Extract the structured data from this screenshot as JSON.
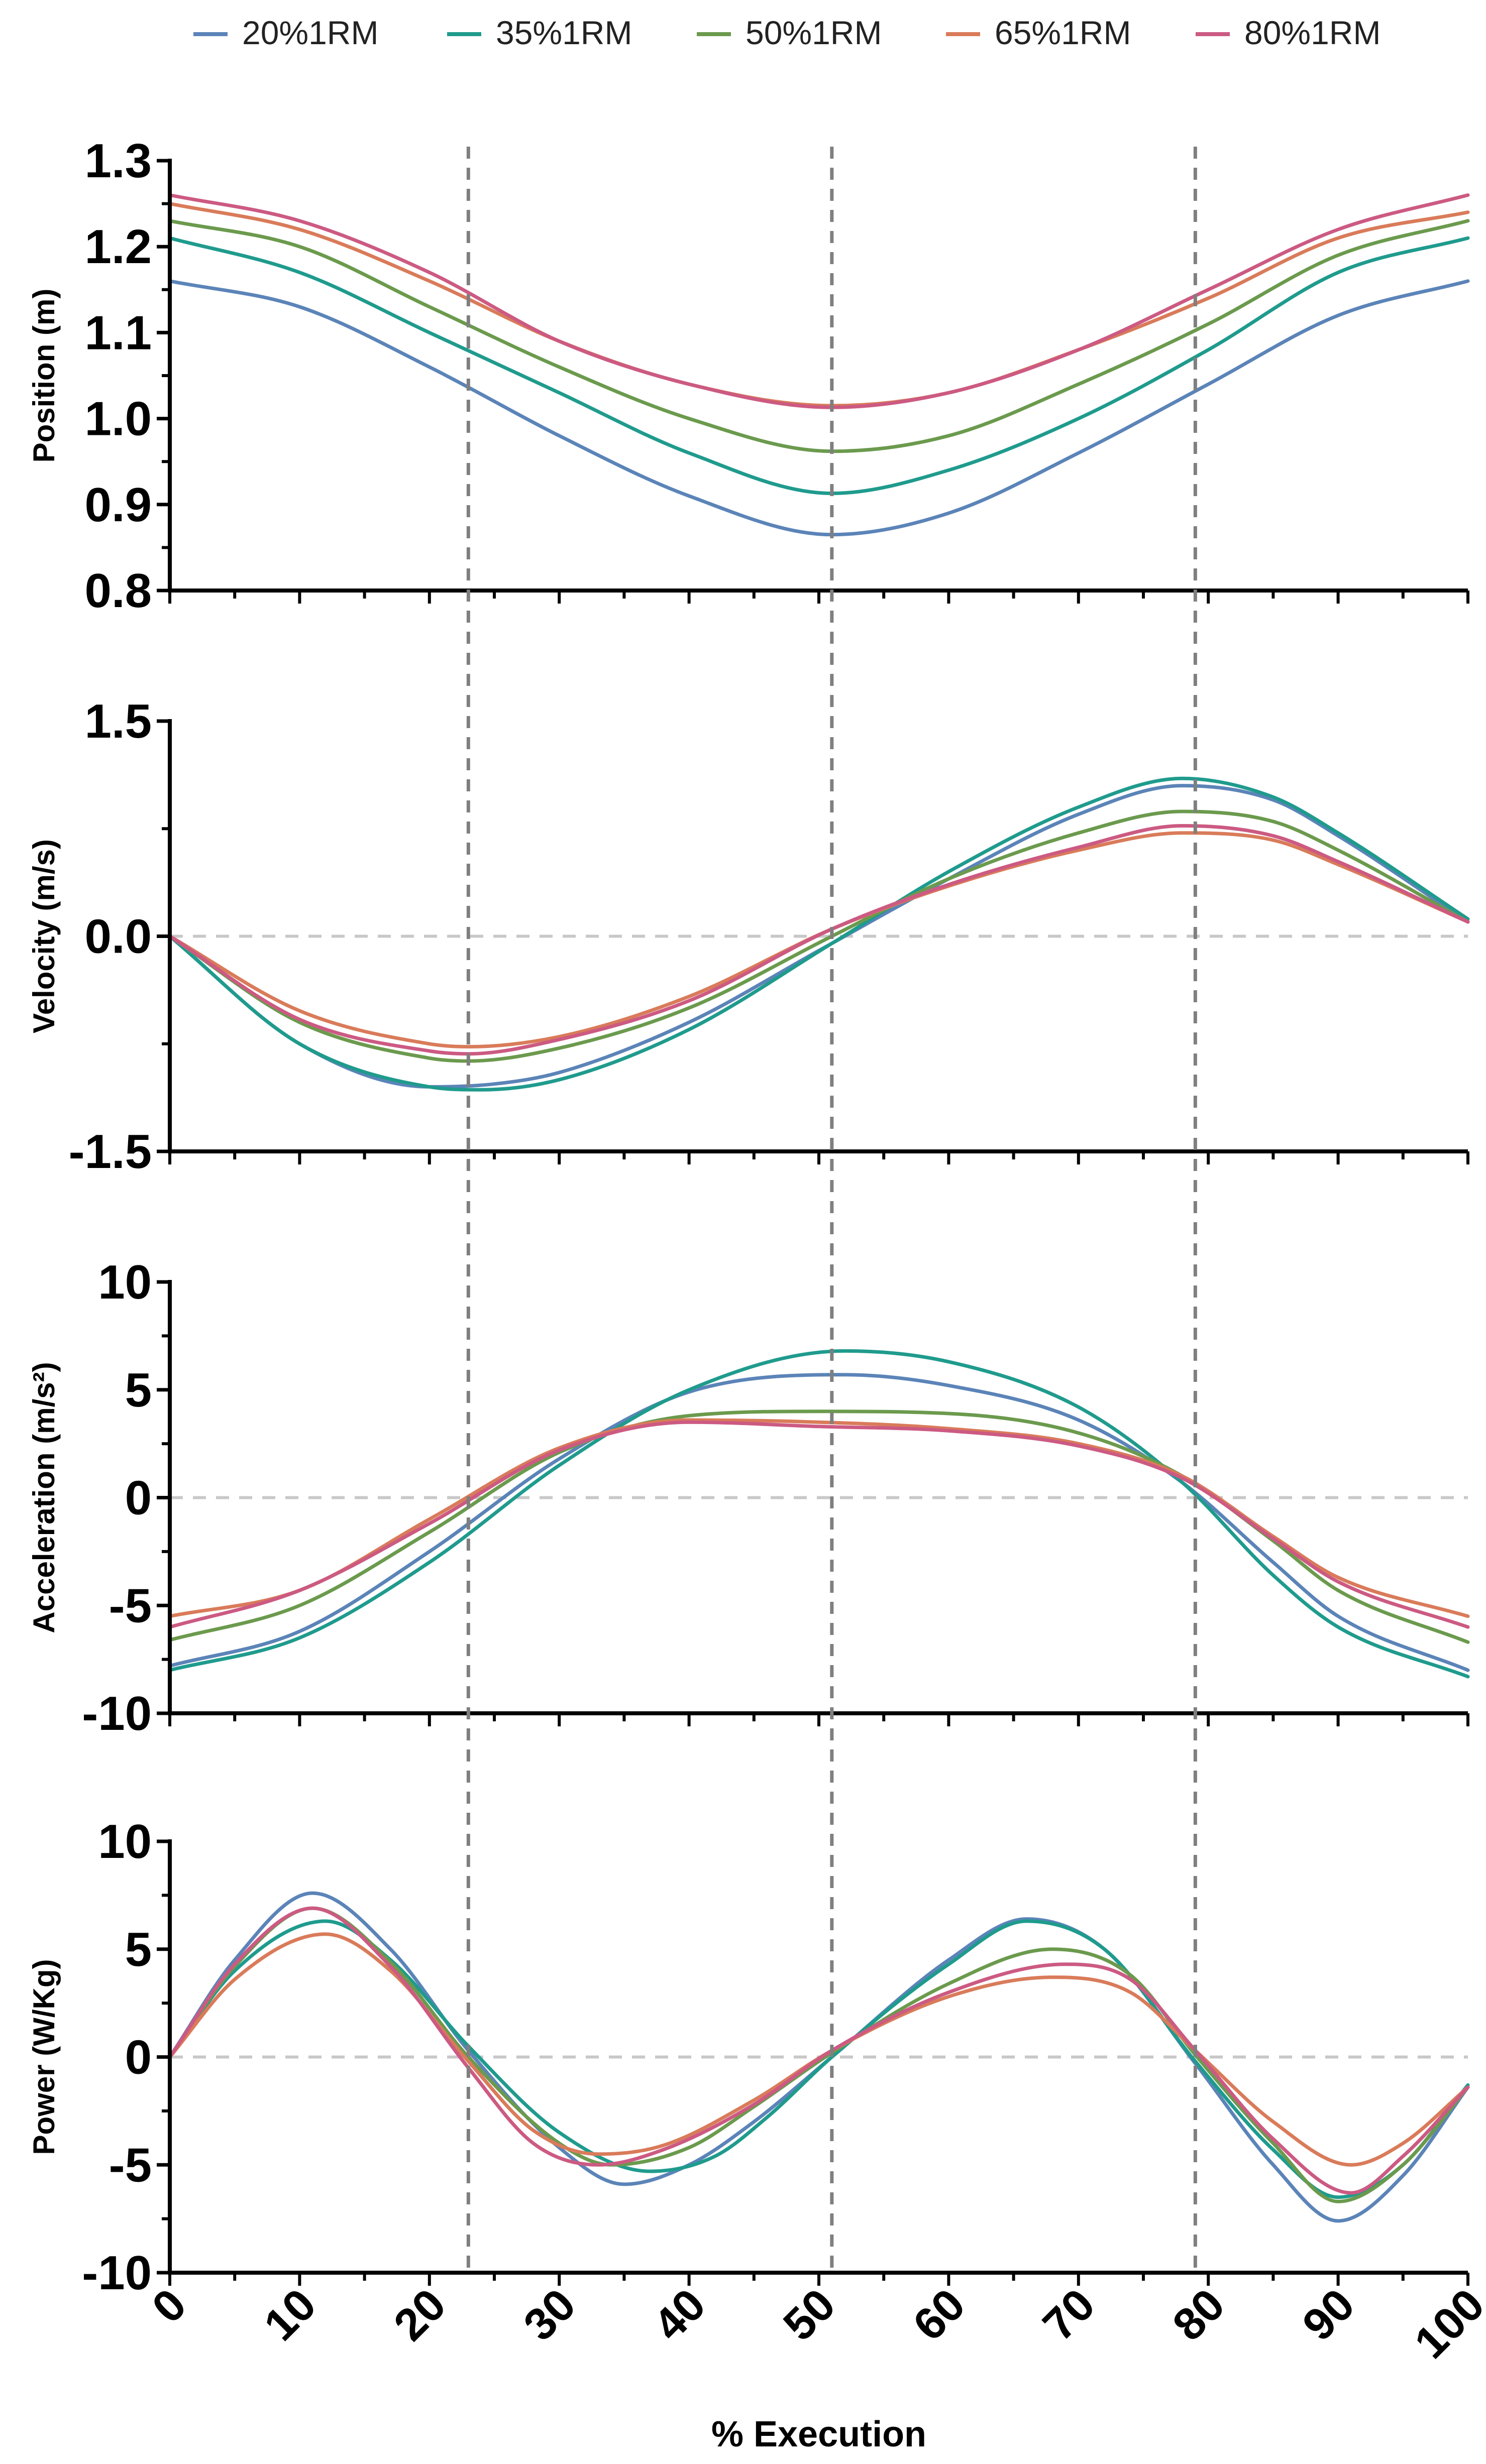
{
  "chart_data": {
    "type": "line",
    "xlabel": "% Execution",
    "xlim": [
      0,
      100
    ],
    "xticks": [
      "0",
      "10",
      "20",
      "30",
      "40",
      "50",
      "60",
      "70",
      "80",
      "90",
      "100"
    ],
    "phase_markers_x": [
      23,
      51,
      79
    ],
    "legend": [
      {
        "name": "20%1RM",
        "color": "#5b84b8"
      },
      {
        "name": "35%1RM",
        "color": "#1f9b8d"
      },
      {
        "name": "50%1RM",
        "color": "#6b9a4d"
      },
      {
        "name": "65%1RM",
        "color": "#d97b5a"
      },
      {
        "name": "80%1RM",
        "color": "#cc5a82"
      }
    ],
    "panels": [
      {
        "ylabel": "Position (m)",
        "ylim": [
          0.8,
          1.3
        ],
        "yticks": [
          "0.8",
          "0.9",
          "1.0",
          "1.1",
          "1.2",
          "1.3"
        ],
        "zero_line": false,
        "series": [
          {
            "name": "20%1RM",
            "color": "#5b84b8",
            "x": [
              0,
              10,
              20,
              30,
              40,
              51,
              60,
              70,
              80,
              90,
              100
            ],
            "y": [
              1.16,
              1.13,
              1.06,
              0.98,
              0.91,
              0.865,
              0.89,
              0.96,
              1.04,
              1.12,
              1.16
            ]
          },
          {
            "name": "35%1RM",
            "color": "#1f9b8d",
            "x": [
              0,
              10,
              20,
              30,
              40,
              51,
              60,
              70,
              80,
              90,
              100
            ],
            "y": [
              1.21,
              1.17,
              1.1,
              1.03,
              0.96,
              0.913,
              0.94,
              1.0,
              1.08,
              1.17,
              1.21
            ]
          },
          {
            "name": "50%1RM",
            "color": "#6b9a4d",
            "x": [
              0,
              10,
              20,
              30,
              40,
              51,
              60,
              70,
              80,
              90,
              100
            ],
            "y": [
              1.23,
              1.2,
              1.13,
              1.06,
              1.0,
              0.962,
              0.98,
              1.04,
              1.11,
              1.19,
              1.23
            ]
          },
          {
            "name": "65%1RM",
            "color": "#d97b5a",
            "x": [
              0,
              10,
              20,
              30,
              40,
              51,
              60,
              70,
              80,
              90,
              100
            ],
            "y": [
              1.25,
              1.22,
              1.16,
              1.09,
              1.04,
              1.015,
              1.03,
              1.08,
              1.14,
              1.21,
              1.24
            ]
          },
          {
            "name": "80%1RM",
            "color": "#cc5a82",
            "x": [
              0,
              10,
              20,
              30,
              40,
              51,
              60,
              70,
              80,
              90,
              100
            ],
            "y": [
              1.26,
              1.23,
              1.17,
              1.09,
              1.04,
              1.013,
              1.03,
              1.08,
              1.15,
              1.22,
              1.26
            ]
          }
        ]
      },
      {
        "ylabel": "Velocity (m/s)",
        "ylim": [
          -1.5,
          1.5
        ],
        "yticks": [
          "-1.5",
          "0.0",
          "1.5"
        ],
        "zero_line": true,
        "series": [
          {
            "name": "20%1RM",
            "color": "#5b84b8",
            "x": [
              0,
              10,
              20,
              25,
              30,
              40,
              50,
              60,
              70,
              78,
              85,
              90,
              100
            ],
            "y": [
              0,
              -0.75,
              -1.05,
              -1.03,
              -0.95,
              -0.6,
              -0.1,
              0.4,
              0.85,
              1.05,
              0.95,
              0.7,
              0.1
            ]
          },
          {
            "name": "35%1RM",
            "color": "#1f9b8d",
            "x": [
              0,
              10,
              20,
              24,
              30,
              40,
              51,
              60,
              70,
              78,
              85,
              90,
              100
            ],
            "y": [
              0,
              -0.75,
              -1.05,
              -1.07,
              -1.0,
              -0.65,
              -0.05,
              0.45,
              0.9,
              1.1,
              0.97,
              0.72,
              0.12
            ]
          },
          {
            "name": "50%1RM",
            "color": "#6b9a4d",
            "x": [
              0,
              10,
              20,
              23,
              30,
              40,
              51,
              60,
              70,
              78,
              85,
              90,
              100
            ],
            "y": [
              0,
              -0.6,
              -0.85,
              -0.87,
              -0.78,
              -0.5,
              0,
              0.4,
              0.72,
              0.87,
              0.8,
              0.6,
              0.1
            ]
          },
          {
            "name": "65%1RM",
            "color": "#d97b5a",
            "x": [
              0,
              10,
              20,
              23,
              30,
              40,
              51,
              60,
              70,
              78,
              85,
              90,
              100
            ],
            "y": [
              0,
              -0.52,
              -0.75,
              -0.77,
              -0.7,
              -0.42,
              0.05,
              0.35,
              0.6,
              0.72,
              0.67,
              0.5,
              0.1
            ]
          },
          {
            "name": "80%1RM",
            "color": "#cc5a82",
            "x": [
              0,
              10,
              20,
              23,
              30,
              40,
              51,
              60,
              70,
              78,
              85,
              90,
              100
            ],
            "y": [
              0,
              -0.58,
              -0.8,
              -0.82,
              -0.72,
              -0.45,
              0.05,
              0.36,
              0.62,
              0.77,
              0.7,
              0.52,
              0.1
            ]
          }
        ]
      },
      {
        "ylabel": "Acceleration (m/s²)",
        "ylim": [
          -10,
          10
        ],
        "yticks": [
          "-10",
          "-5",
          "0",
          "5",
          "10"
        ],
        "zero_line": true,
        "series": [
          {
            "name": "20%1RM",
            "color": "#5b84b8",
            "x": [
              0,
              10,
              20,
              30,
              40,
              52,
              60,
              70,
              78,
              85,
              90,
              100
            ],
            "y": [
              -7.8,
              -6.2,
              -2.5,
              1.8,
              4.9,
              5.7,
              5.2,
              3.6,
              0.7,
              -3.0,
              -5.5,
              -8.0
            ]
          },
          {
            "name": "35%1RM",
            "color": "#1f9b8d",
            "x": [
              0,
              10,
              20,
              30,
              40,
              52,
              60,
              70,
              78,
              85,
              90,
              100
            ],
            "y": [
              -8.0,
              -6.5,
              -3.0,
              1.5,
              5.0,
              6.8,
              6.3,
              4.2,
              0.7,
              -3.6,
              -6.0,
              -8.3
            ]
          },
          {
            "name": "50%1RM",
            "color": "#6b9a4d",
            "x": [
              0,
              10,
              20,
              30,
              40,
              50,
              60,
              70,
              78,
              85,
              90,
              100
            ],
            "y": [
              -6.6,
              -5.0,
              -1.6,
              2.1,
              3.8,
              4.0,
              3.9,
              3.0,
              1.0,
              -2.0,
              -4.3,
              -6.7
            ]
          },
          {
            "name": "65%1RM",
            "color": "#d97b5a",
            "x": [
              0,
              10,
              20,
              30,
              40,
              50,
              60,
              70,
              78,
              85,
              90,
              100
            ],
            "y": [
              -5.5,
              -4.3,
              -1.0,
              2.3,
              3.6,
              3.5,
              3.2,
              2.5,
              1.0,
              -1.8,
              -3.7,
              -5.5
            ]
          },
          {
            "name": "80%1RM",
            "color": "#cc5a82",
            "x": [
              0,
              10,
              20,
              30,
              40,
              50,
              60,
              70,
              78,
              85,
              90,
              100
            ],
            "y": [
              -6.0,
              -4.3,
              -1.2,
              2.2,
              3.5,
              3.3,
              3.1,
              2.4,
              0.9,
              -1.9,
              -3.9,
              -6.0
            ]
          }
        ]
      },
      {
        "ylabel": "Power (W/Kg)",
        "ylim": [
          -10,
          10
        ],
        "yticks": [
          "-10",
          "-5",
          "0",
          "5",
          "10"
        ],
        "zero_line": true,
        "series": [
          {
            "name": "20%1RM",
            "color": "#5b84b8",
            "x": [
              0,
              5,
              11,
              17,
              23,
              30,
              35,
              40,
              45,
              51,
              60,
              66,
              72,
              79,
              85,
              90,
              95,
              100
            ],
            "y": [
              0,
              4.5,
              7.6,
              5.0,
              0.3,
              -4.2,
              -5.9,
              -5.0,
              -3.0,
              0,
              4.5,
              6.4,
              5.0,
              -0.3,
              -5.0,
              -7.6,
              -5.5,
              -1.4
            ]
          },
          {
            "name": "35%1RM",
            "color": "#1f9b8d",
            "x": [
              0,
              5,
              12,
              17,
              23,
              30,
              37,
              42,
              46,
              51,
              60,
              66,
              72,
              79,
              85,
              90,
              95,
              100
            ],
            "y": [
              0,
              4.0,
              6.3,
              4.5,
              0.5,
              -3.5,
              -5.3,
              -4.6,
              -2.8,
              0,
              4.3,
              6.3,
              5.0,
              -0.2,
              -4.3,
              -6.5,
              -5.0,
              -1.3
            ]
          },
          {
            "name": "50%1RM",
            "color": "#6b9a4d",
            "x": [
              0,
              5,
              11,
              17,
              23,
              30,
              34,
              40,
              45,
              51,
              60,
              68,
              74,
              79,
              85,
              90,
              95,
              100
            ],
            "y": [
              0,
              4.2,
              6.9,
              4.4,
              0,
              -4.0,
              -5.0,
              -4.2,
              -2.3,
              0.2,
              3.4,
              5.0,
              3.8,
              0.1,
              -4.0,
              -6.7,
              -5.0,
              -1.4
            ]
          },
          {
            "name": "65%1RM",
            "color": "#d97b5a",
            "x": [
              0,
              5,
              12,
              17,
              23,
              28,
              33,
              38,
              45,
              51,
              60,
              68,
              74,
              79,
              85,
              91,
              95,
              100
            ],
            "y": [
              0,
              3.6,
              5.7,
              4.0,
              -0.2,
              -3.4,
              -4.5,
              -4.1,
              -2.0,
              0.3,
              2.8,
              3.7,
              3.0,
              0.3,
              -3.0,
              -5.0,
              -4.0,
              -1.4
            ]
          },
          {
            "name": "80%1RM",
            "color": "#cc5a82",
            "x": [
              0,
              5,
              11,
              17,
              23,
              28,
              33,
              38,
              45,
              51,
              60,
              69,
              74,
              79,
              85,
              91,
              95,
              100
            ],
            "y": [
              0,
              4.3,
              6.9,
              4.2,
              -0.5,
              -4.0,
              -5.0,
              -4.3,
              -2.2,
              0.3,
              3.0,
              4.3,
              3.6,
              0.3,
              -3.8,
              -6.3,
              -4.6,
              -1.4
            ]
          }
        ]
      }
    ]
  }
}
